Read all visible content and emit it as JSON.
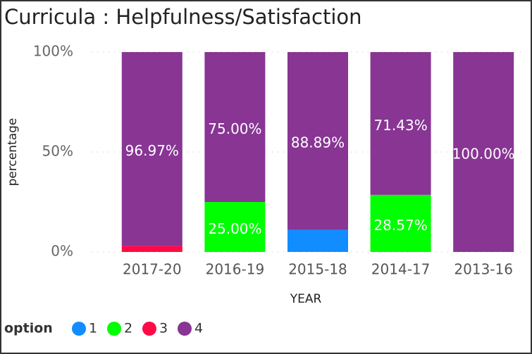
{
  "chart_data": {
    "type": "stacked_bar",
    "title": "Curricula : Helpfulness/Satisfaction",
    "x_label": "YEAR",
    "y_label": "percentage",
    "legend_title": "option",
    "categories": [
      "2017-20",
      "2016-19",
      "2015-18",
      "2014-17",
      "2013-16"
    ],
    "series": [
      {
        "name": "1",
        "color": "#118dff",
        "values": [
          null,
          null,
          11.11,
          null,
          null
        ],
        "value_labels": [
          null,
          null,
          null,
          null,
          null
        ]
      },
      {
        "name": "2",
        "color": "#00ff00",
        "values": [
          null,
          25,
          null,
          28.57,
          null
        ],
        "value_labels": [
          null,
          "25.00%",
          null,
          "28.57%",
          null
        ]
      },
      {
        "name": "3",
        "color": "#ff0a47",
        "values": [
          3.03,
          null,
          null,
          null,
          null
        ],
        "value_labels": [
          null,
          null,
          null,
          null,
          null
        ]
      },
      {
        "name": "4",
        "color": "#883594",
        "values": [
          96.97,
          75,
          88.89,
          71.43,
          100
        ],
        "value_labels": [
          "96.97%",
          "75.00%",
          "88.89%",
          "71.43%",
          "100.00%"
        ]
      }
    ],
    "ylim": [
      0,
      100
    ],
    "yticks": [
      {
        "value": 0,
        "label": "0%"
      },
      {
        "value": 50,
        "label": "50%"
      },
      {
        "value": 100,
        "label": "100%"
      }
    ],
    "grid": true,
    "legend": "bottom-left"
  }
}
